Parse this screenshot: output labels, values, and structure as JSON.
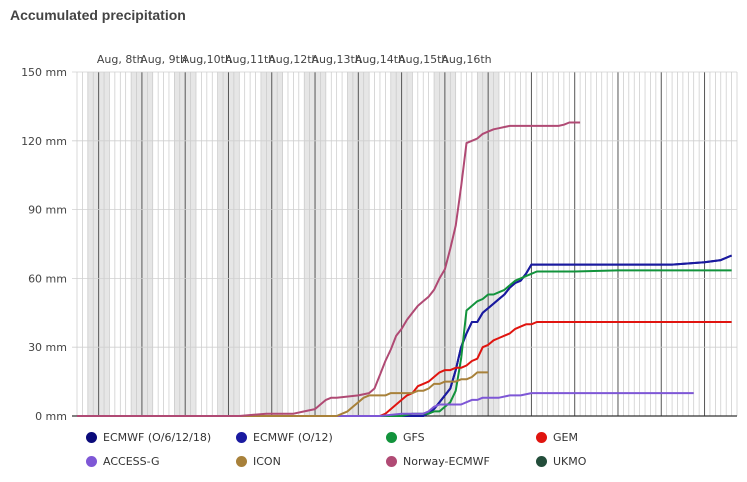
{
  "chart_data": {
    "type": "line",
    "title": "Accumulated precipitation",
    "y_unit": "mm",
    "ylim": [
      0,
      150
    ],
    "y_ticks": [
      "0 mm",
      "30 mm",
      "60 mm",
      "90 mm",
      "120 mm",
      "150 mm"
    ],
    "x_ticks": [
      "Aug, 8th",
      "Aug, 9th",
      "Aug,10th",
      "Aug,11th",
      "Aug,12th",
      "Aug,13th",
      "Aug,14th",
      "Aug,15th",
      "Aug,16th"
    ],
    "grid": true,
    "legend_position": "bottom",
    "series": [
      {
        "name": "ECMWF (O/6/12/18)",
        "color": "#0a0a7a",
        "points": [
          [
            0,
            0
          ],
          [
            64,
            0
          ],
          [
            64.8,
            1
          ],
          [
            66,
            3
          ],
          [
            67,
            6
          ],
          [
            68,
            9
          ],
          [
            69,
            12
          ],
          [
            70,
            20
          ],
          [
            71,
            30
          ],
          [
            72,
            36
          ],
          [
            73,
            41
          ],
          [
            74,
            41
          ],
          [
            75,
            45
          ],
          [
            76,
            47
          ],
          [
            77,
            49
          ],
          [
            78,
            51
          ],
          [
            79,
            53
          ],
          [
            80,
            56
          ],
          [
            81,
            58
          ],
          [
            82,
            59
          ],
          [
            83,
            62
          ],
          [
            84,
            66
          ],
          [
            88,
            66
          ],
          [
            100,
            66
          ],
          [
            110,
            66
          ],
          [
            116,
            67
          ],
          [
            119,
            68
          ],
          [
            121,
            70
          ]
        ]
      },
      {
        "name": "ECMWF (O/12)",
        "color": "#1a1aa0",
        "points": [
          [
            0,
            0
          ],
          [
            64,
            0
          ],
          [
            64.8,
            1
          ],
          [
            66,
            3
          ],
          [
            67,
            6
          ],
          [
            68,
            9
          ],
          [
            69,
            12
          ],
          [
            70,
            20
          ],
          [
            71,
            30
          ],
          [
            72,
            36
          ],
          [
            73,
            41
          ],
          [
            74,
            41
          ],
          [
            75,
            45
          ],
          [
            76,
            47
          ],
          [
            77,
            49
          ],
          [
            78,
            51
          ],
          [
            79,
            53
          ],
          [
            80,
            56
          ],
          [
            81,
            58
          ],
          [
            82,
            59
          ],
          [
            83,
            62
          ],
          [
            84,
            66
          ],
          [
            88,
            66
          ],
          [
            100,
            66
          ],
          [
            110,
            66
          ],
          [
            116,
            67
          ],
          [
            119,
            68
          ],
          [
            121,
            70
          ]
        ]
      },
      {
        "name": "GFS",
        "color": "#12933c",
        "points": [
          [
            0,
            0
          ],
          [
            60,
            0
          ],
          [
            62,
            1
          ],
          [
            64,
            1
          ],
          [
            65,
            1
          ],
          [
            66,
            2
          ],
          [
            67,
            2
          ],
          [
            68,
            4
          ],
          [
            69,
            6
          ],
          [
            70,
            11
          ],
          [
            71,
            25
          ],
          [
            72,
            46
          ],
          [
            73,
            48
          ],
          [
            74,
            50
          ],
          [
            75,
            51
          ],
          [
            76,
            53
          ],
          [
            77,
            53
          ],
          [
            78,
            54
          ],
          [
            79,
            55
          ],
          [
            80,
            57
          ],
          [
            81,
            59
          ],
          [
            82,
            60
          ],
          [
            83,
            61
          ],
          [
            84,
            62
          ],
          [
            85,
            63
          ],
          [
            92,
            63
          ],
          [
            100,
            63.5
          ],
          [
            110,
            63.5
          ],
          [
            121,
            63.5
          ]
        ]
      },
      {
        "name": "GEM",
        "color": "#e0140f",
        "points": [
          [
            0,
            0
          ],
          [
            56,
            0
          ],
          [
            57,
            1
          ],
          [
            58,
            3
          ],
          [
            59,
            5
          ],
          [
            60,
            7
          ],
          [
            61,
            9
          ],
          [
            62,
            10
          ],
          [
            63,
            13
          ],
          [
            64,
            14
          ],
          [
            65,
            15
          ],
          [
            66,
            17
          ],
          [
            67,
            19
          ],
          [
            68,
            20
          ],
          [
            69,
            20
          ],
          [
            70,
            21
          ],
          [
            71,
            21
          ],
          [
            72,
            22
          ],
          [
            73,
            24
          ],
          [
            74,
            25
          ],
          [
            75,
            30
          ],
          [
            76,
            31
          ],
          [
            77,
            33
          ],
          [
            78,
            34
          ],
          [
            79,
            35
          ],
          [
            80,
            36
          ],
          [
            81,
            38
          ],
          [
            82,
            39
          ],
          [
            83,
            40
          ],
          [
            84,
            40
          ],
          [
            85,
            41
          ],
          [
            100,
            41
          ],
          [
            121,
            41
          ]
        ]
      },
      {
        "name": "ACCESS-G",
        "color": "#7e57d6",
        "points": [
          [
            0,
            0
          ],
          [
            56,
            0
          ],
          [
            60,
            1
          ],
          [
            64,
            1
          ],
          [
            65,
            2
          ],
          [
            66,
            4
          ],
          [
            67,
            5
          ],
          [
            68,
            5
          ],
          [
            71,
            5
          ],
          [
            72,
            6
          ],
          [
            73,
            7
          ],
          [
            74,
            7
          ],
          [
            75,
            8
          ],
          [
            76,
            8
          ],
          [
            78,
            8
          ],
          [
            80,
            9
          ],
          [
            82,
            9
          ],
          [
            84,
            10
          ],
          [
            100,
            10
          ],
          [
            114,
            10
          ]
        ]
      },
      {
        "name": "ICON",
        "color": "#a8813a",
        "points": [
          [
            0,
            0
          ],
          [
            48,
            0
          ],
          [
            49,
            1
          ],
          [
            50,
            2
          ],
          [
            51,
            4
          ],
          [
            52,
            6
          ],
          [
            53,
            8
          ],
          [
            54,
            9
          ],
          [
            56,
            9
          ],
          [
            57,
            9
          ],
          [
            58,
            10
          ],
          [
            60,
            10
          ],
          [
            62,
            10
          ],
          [
            63,
            11
          ],
          [
            64,
            11
          ],
          [
            65,
            12
          ],
          [
            66,
            14
          ],
          [
            67,
            14
          ],
          [
            68,
            15
          ],
          [
            69,
            15
          ],
          [
            70,
            15
          ],
          [
            71,
            16
          ],
          [
            72,
            16
          ],
          [
            73,
            17
          ],
          [
            74,
            19
          ],
          [
            76,
            19
          ]
        ]
      },
      {
        "name": "Norway-ECMWF",
        "color": "#b04a74",
        "points": [
          [
            0,
            0
          ],
          [
            30,
            0
          ],
          [
            35,
            1
          ],
          [
            40,
            1
          ],
          [
            42,
            2
          ],
          [
            44,
            3
          ],
          [
            45,
            5
          ],
          [
            46,
            7
          ],
          [
            47,
            8
          ],
          [
            48,
            8
          ],
          [
            52,
            9
          ],
          [
            54,
            10
          ],
          [
            55,
            12
          ],
          [
            56,
            18
          ],
          [
            57,
            24
          ],
          [
            58,
            29
          ],
          [
            59,
            35
          ],
          [
            60,
            38
          ],
          [
            61,
            42
          ],
          [
            62,
            45
          ],
          [
            63,
            48
          ],
          [
            64,
            50
          ],
          [
            65,
            52
          ],
          [
            66,
            55
          ],
          [
            67,
            60
          ],
          [
            68,
            64
          ],
          [
            69,
            73
          ],
          [
            70,
            83
          ],
          [
            71,
            100
          ],
          [
            72,
            119
          ],
          [
            73,
            120
          ],
          [
            74,
            121
          ],
          [
            75,
            123
          ],
          [
            76,
            124
          ],
          [
            77,
            125
          ],
          [
            78,
            125.5
          ],
          [
            79,
            126
          ],
          [
            80,
            126.5
          ],
          [
            81,
            126.5
          ],
          [
            85,
            126.5
          ],
          [
            89,
            126.5
          ],
          [
            90,
            127
          ],
          [
            91,
            128
          ],
          [
            93,
            128
          ]
        ]
      },
      {
        "name": "UKMO",
        "color": "#234d3a",
        "points": []
      }
    ]
  }
}
